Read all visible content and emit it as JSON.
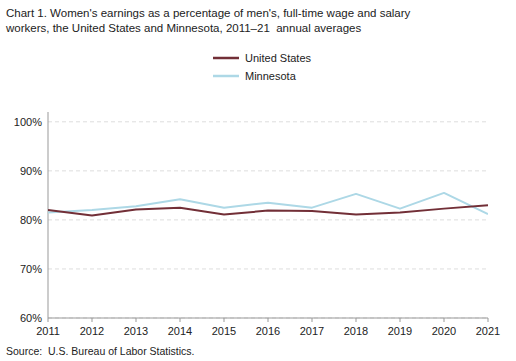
{
  "chart_data": {
    "type": "line",
    "title": "Chart 1. Women's earnings as a percentage of men's, full-time wage and salary\nworkers, the United States and Minnesota, 2011–21  annual averages",
    "source": "Source:  U.S. Bureau of Labor Statistics.",
    "x": [
      2011,
      2012,
      2013,
      2014,
      2015,
      2016,
      2017,
      2018,
      2019,
      2020,
      2021
    ],
    "series": [
      {
        "name": "United States",
        "color": "#722F37",
        "values": [
          82.0,
          80.9,
          82.1,
          82.5,
          81.1,
          81.9,
          81.8,
          81.1,
          81.5,
          82.3,
          83.0
        ]
      },
      {
        "name": "Minnesota",
        "color": "#ADD8E6",
        "values": [
          81.5,
          82.0,
          82.8,
          84.2,
          82.5,
          83.5,
          82.5,
          85.3,
          82.3,
          85.5,
          81.2
        ]
      }
    ],
    "xlim": [
      2011,
      2021
    ],
    "xticks": [
      2011,
      2012,
      2013,
      2014,
      2015,
      2016,
      2017,
      2018,
      2019,
      2020,
      2021
    ],
    "ylim": [
      60,
      102
    ],
    "yticks": [
      {
        "value": 60,
        "label": "60%"
      },
      {
        "value": 70,
        "label": "70%"
      },
      {
        "value": 80,
        "label": "80%"
      },
      {
        "value": 90,
        "label": "90%"
      },
      {
        "value": 100,
        "label": "100%"
      }
    ],
    "grid": true,
    "legend": "top"
  }
}
